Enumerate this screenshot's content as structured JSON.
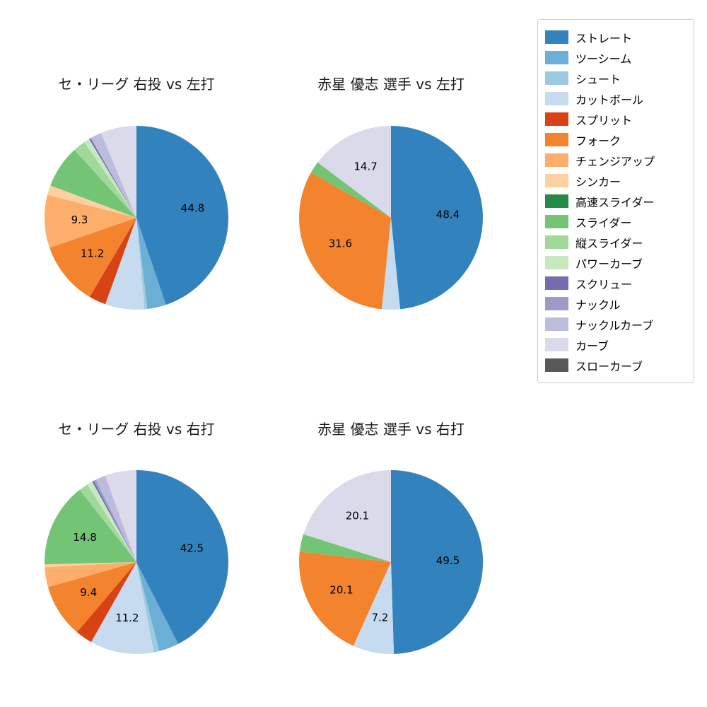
{
  "figure": {
    "background": "#ffffff",
    "text_color": "#1a1a1a"
  },
  "palette": {
    "ストレート": "#3182bd",
    "ツーシーム": "#6baed6",
    "シュート": "#9ecae1",
    "カットボール": "#c6dbef",
    "スプリット": "#d84315",
    "フォーク": "#f3832d",
    "チェンジアップ": "#fdae6b",
    "シンカー": "#fdd0a2",
    "高速スライダー": "#238b45",
    "スライダー": "#74c476",
    "縦スライダー": "#a1d99b",
    "パワーカーブ": "#c7e9c0",
    "スクリュー": "#756bb1",
    "ナックル": "#9e9ac8",
    "ナックルカーブ": "#bcbddc",
    "カーブ": "#dadaeb",
    "スローカーブ": "#595959"
  },
  "legend": {
    "position": "upper right",
    "items": [
      "ストレート",
      "ツーシーム",
      "シュート",
      "カットボール",
      "スプリット",
      "フォーク",
      "チェンジアップ",
      "シンカー",
      "高速スライダー",
      "スライダー",
      "縦スライダー",
      "パワーカーブ",
      "スクリュー",
      "ナックル",
      "ナックルカーブ",
      "カーブ",
      "スローカーブ"
    ]
  },
  "chart_data": [
    {
      "type": "pie",
      "title": "セ・リーグ 右投 vs 左打",
      "start_angle_deg": 90,
      "direction": "clockwise",
      "label_radius_ratio": 0.62,
      "slices": [
        {
          "name": "ストレート",
          "value": 44.8,
          "label": "44.8"
        },
        {
          "name": "ツーシーム",
          "value": 3.3,
          "label": null
        },
        {
          "name": "シュート",
          "value": 0.5,
          "label": null
        },
        {
          "name": "カットボール",
          "value": 6.9,
          "label": null
        },
        {
          "name": "スプリット",
          "value": 3.0,
          "label": null
        },
        {
          "name": "フォーク",
          "value": 11.2,
          "label": "11.2"
        },
        {
          "name": "チェンジアップ",
          "value": 9.3,
          "label": "9.3"
        },
        {
          "name": "シンカー",
          "value": 1.7,
          "label": null
        },
        {
          "name": "スライダー",
          "value": 7.5,
          "label": null
        },
        {
          "name": "縦スライダー",
          "value": 2.2,
          "label": null
        },
        {
          "name": "パワーカーブ",
          "value": 1.0,
          "label": null
        },
        {
          "name": "スクリュー",
          "value": 0.3,
          "label": null
        },
        {
          "name": "ナックルカーブ",
          "value": 2.0,
          "label": null
        },
        {
          "name": "カーブ",
          "value": 6.3,
          "label": null
        }
      ]
    },
    {
      "type": "pie",
      "title": "赤星 優志 選手 vs 左打",
      "start_angle_deg": 90,
      "direction": "clockwise",
      "label_radius_ratio": 0.62,
      "slices": [
        {
          "name": "ストレート",
          "value": 48.4,
          "label": "48.4"
        },
        {
          "name": "カットボール",
          "value": 3.2,
          "label": null
        },
        {
          "name": "フォーク",
          "value": 31.6,
          "label": "31.6"
        },
        {
          "name": "スライダー",
          "value": 2.1,
          "label": null
        },
        {
          "name": "カーブ",
          "value": 14.7,
          "label": "14.7"
        }
      ]
    },
    {
      "type": "pie",
      "title": "セ・リーグ 右投 vs 右打",
      "start_angle_deg": 90,
      "direction": "clockwise",
      "label_radius_ratio": 0.62,
      "slices": [
        {
          "name": "ストレート",
          "value": 42.5,
          "label": "42.5"
        },
        {
          "name": "ツーシーム",
          "value": 3.5,
          "label": null
        },
        {
          "name": "シュート",
          "value": 1.0,
          "label": null
        },
        {
          "name": "カットボール",
          "value": 11.2,
          "label": "11.2"
        },
        {
          "name": "スプリット",
          "value": 3.0,
          "label": null
        },
        {
          "name": "フォーク",
          "value": 9.4,
          "label": "9.4"
        },
        {
          "name": "チェンジアップ",
          "value": 3.5,
          "label": null
        },
        {
          "name": "シンカー",
          "value": 0.5,
          "label": null
        },
        {
          "name": "スライダー",
          "value": 14.8,
          "label": "14.8"
        },
        {
          "name": "縦スライダー",
          "value": 1.6,
          "label": null
        },
        {
          "name": "パワーカーブ",
          "value": 1.0,
          "label": null
        },
        {
          "name": "スクリュー",
          "value": 0.3,
          "label": null
        },
        {
          "name": "ナックル",
          "value": 0.4,
          "label": null
        },
        {
          "name": "ナックルカーブ",
          "value": 1.8,
          "label": null
        },
        {
          "name": "カーブ",
          "value": 5.5,
          "label": null
        }
      ]
    },
    {
      "type": "pie",
      "title": "赤星 優志 選手 vs 右打",
      "start_angle_deg": 90,
      "direction": "clockwise",
      "label_radius_ratio": 0.62,
      "slices": [
        {
          "name": "ストレート",
          "value": 49.5,
          "label": "49.5"
        },
        {
          "name": "カットボール",
          "value": 7.2,
          "label": "7.2"
        },
        {
          "name": "フォーク",
          "value": 20.1,
          "label": "20.1"
        },
        {
          "name": "スライダー",
          "value": 3.1,
          "label": null
        },
        {
          "name": "カーブ",
          "value": 20.1,
          "label": "20.1"
        }
      ]
    }
  ]
}
